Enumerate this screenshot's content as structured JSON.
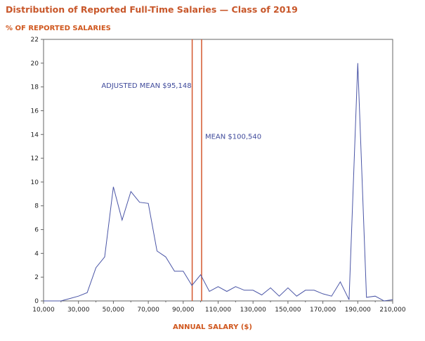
{
  "chart_data": {
    "type": "line",
    "title": "Distribution of Reported Full-Time Salaries — Class of 2019",
    "ylabel": "% OF REPORTED SALARIES",
    "xlabel": "ANNUAL SALARY ($)",
    "xlim": [
      10000,
      210000
    ],
    "ylim": [
      0,
      22
    ],
    "xticks": [
      10000,
      30000,
      50000,
      70000,
      90000,
      110000,
      130000,
      150000,
      170000,
      190000,
      210000
    ],
    "xtick_labels": [
      "10,000",
      "30,000",
      "50,000",
      "70,000",
      "90,000",
      "110,000",
      "130,000",
      "150,000",
      "170,000",
      "190,000",
      "210,000"
    ],
    "yticks": [
      0,
      2,
      4,
      6,
      8,
      10,
      12,
      14,
      16,
      18,
      20,
      22
    ],
    "ytick_labels": [
      "0",
      "2",
      "4",
      "6",
      "8",
      "10",
      "12",
      "14",
      "16",
      "18",
      "20",
      "22"
    ],
    "grid": false,
    "line_color": "#4a55a6",
    "mean_line_color": "#d4572e",
    "series": [
      {
        "x": [
          10000,
          15000,
          20000,
          25000,
          30000,
          35000,
          40000,
          45000,
          50000,
          55000,
          60000,
          65000,
          70000,
          75000,
          80000,
          85000,
          90000,
          95000,
          100000,
          105000,
          110000,
          115000,
          120000,
          125000,
          130000,
          135000,
          140000,
          145000,
          150000,
          155000,
          160000,
          165000,
          170000,
          175000,
          180000,
          185000,
          190000,
          195000,
          200000,
          205000,
          210000
        ],
        "y": [
          0.0,
          0.0,
          0.0,
          0.2,
          0.4,
          0.7,
          2.8,
          3.7,
          9.6,
          6.8,
          9.2,
          8.3,
          8.2,
          4.2,
          3.7,
          2.5,
          2.5,
          1.3,
          2.2,
          0.8,
          1.2,
          0.8,
          1.2,
          0.9,
          0.9,
          0.5,
          1.1,
          0.4,
          1.1,
          0.4,
          0.9,
          0.9,
          0.6,
          0.4,
          1.6,
          0.1,
          20.0,
          0.3,
          0.4,
          0.0,
          0.1
        ]
      }
    ],
    "reference_lines": [
      {
        "x": 95148,
        "label": "ADJUSTED MEAN $95,148",
        "label_y": 18.1
      },
      {
        "x": 100540,
        "label": "MEAN $100,540",
        "label_y": 13.8
      }
    ]
  }
}
